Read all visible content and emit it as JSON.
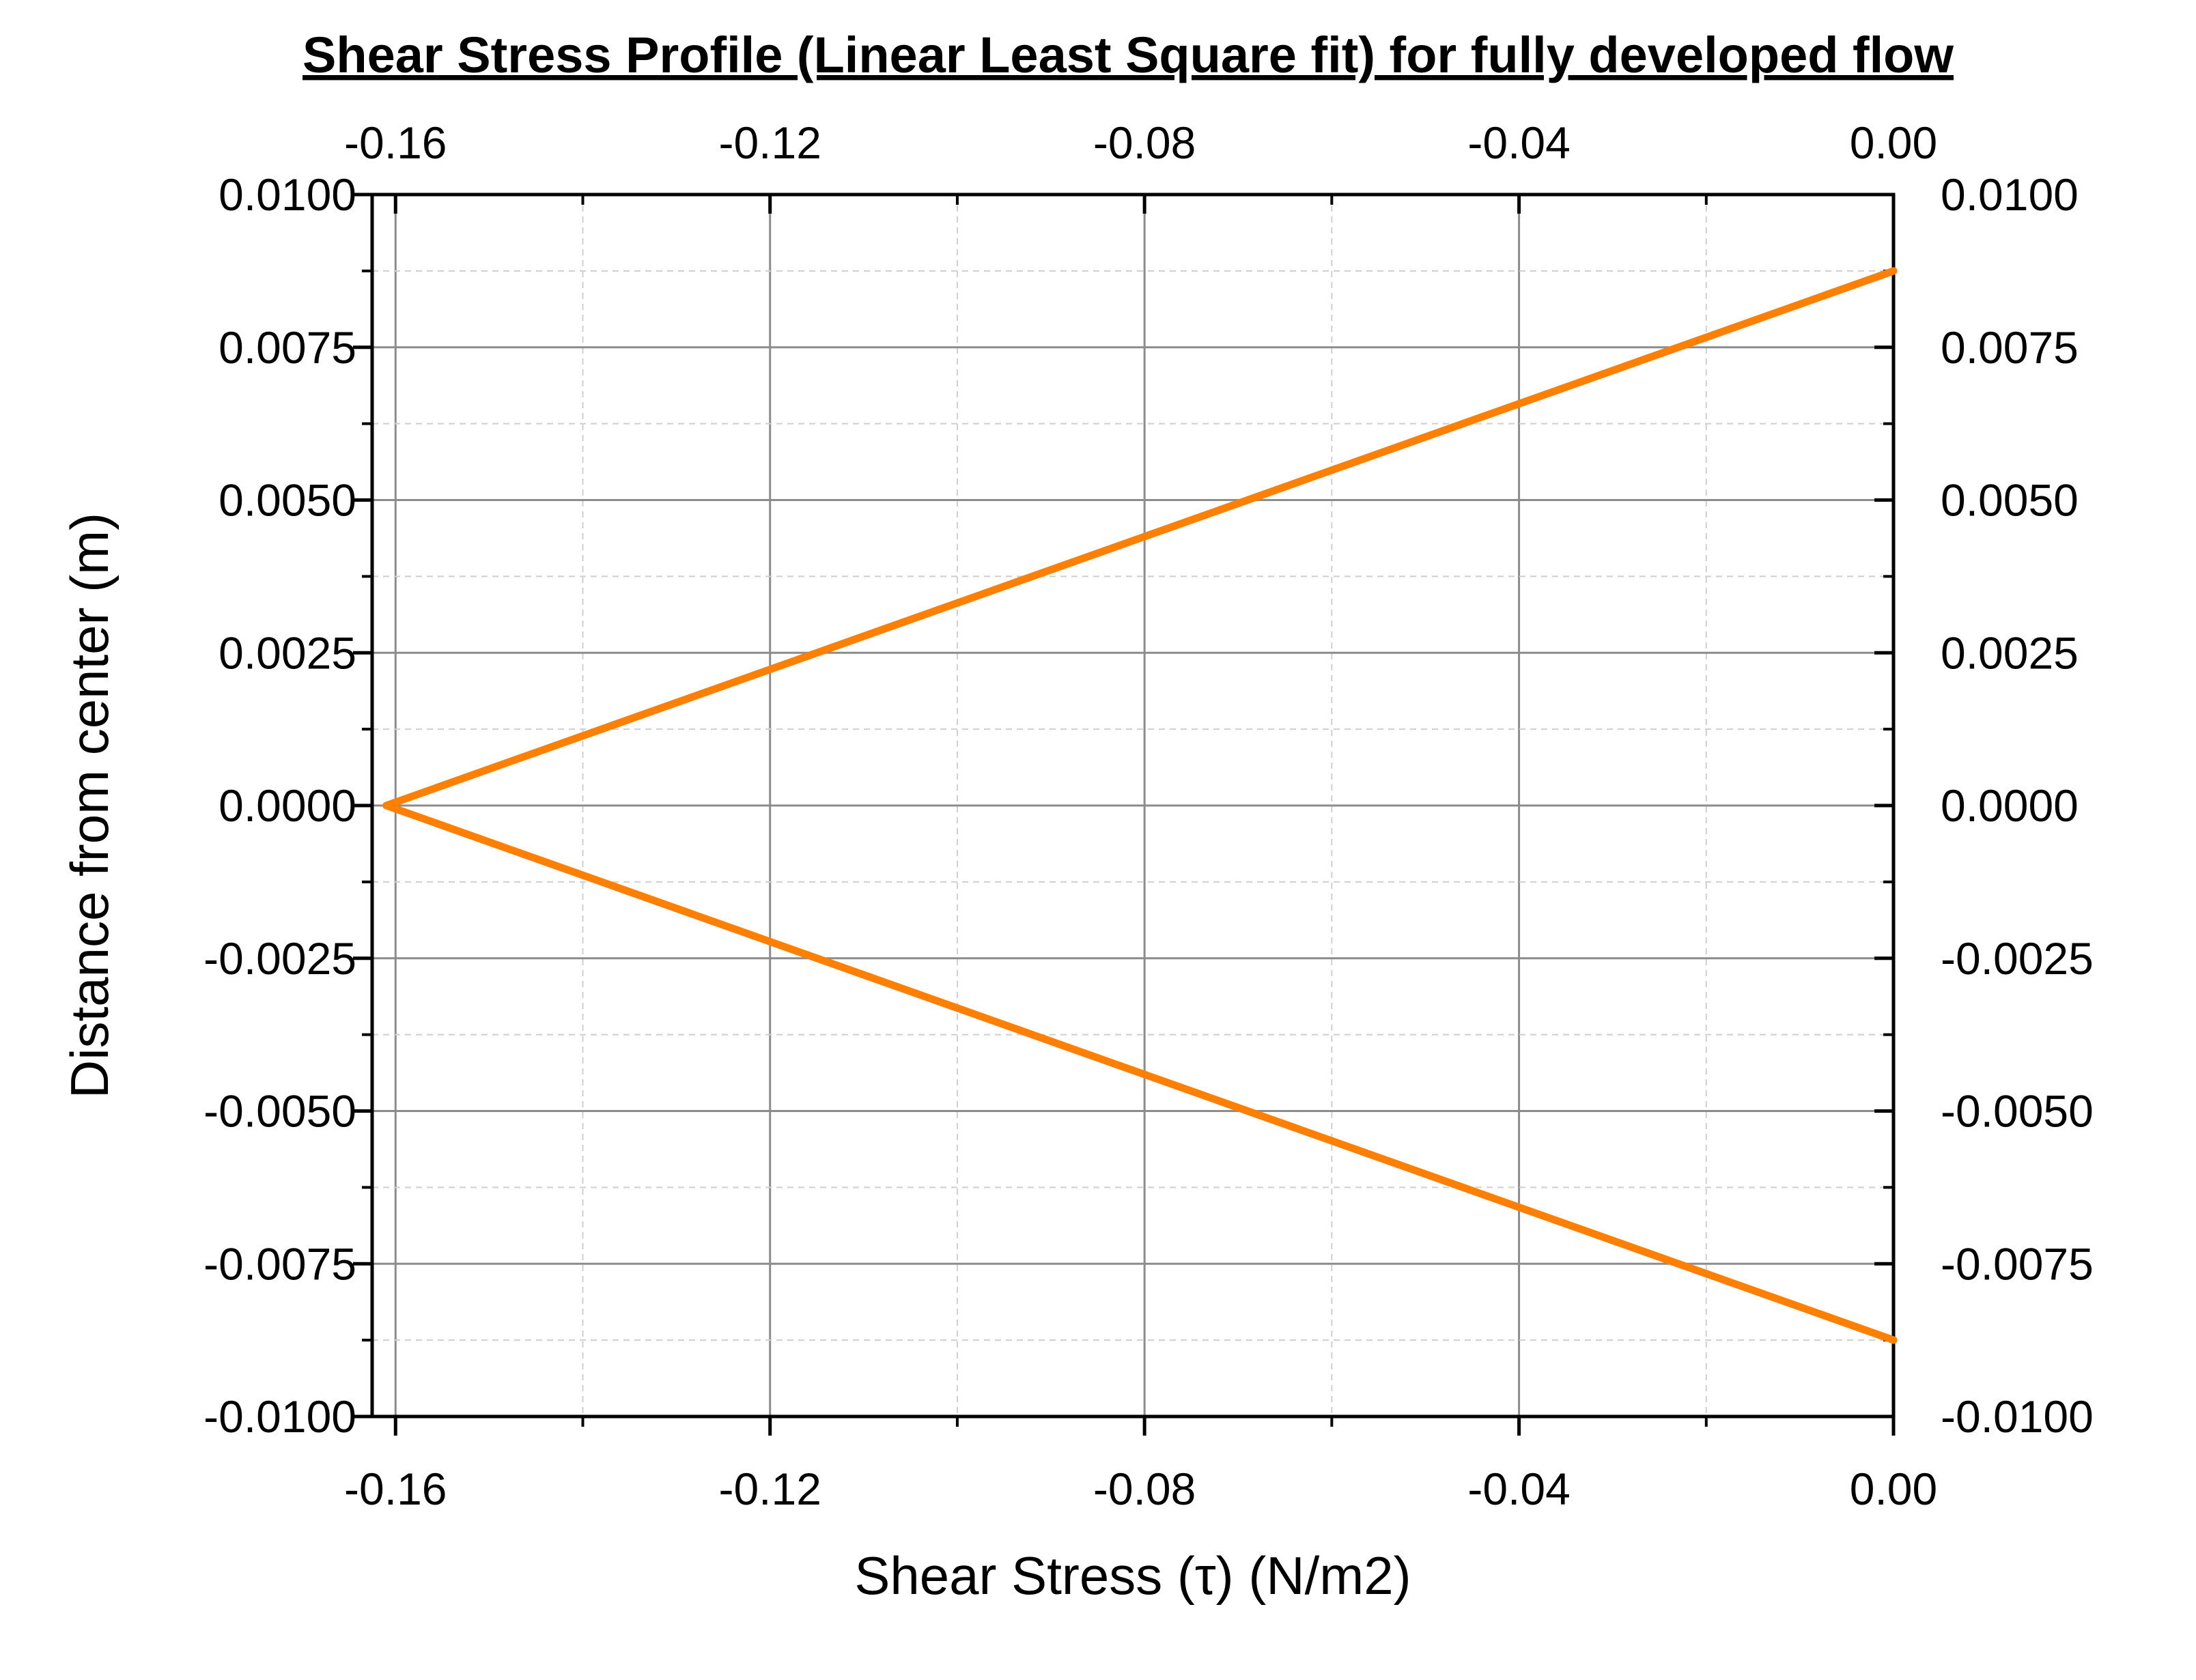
{
  "chart_data": {
    "type": "line",
    "title": "Shear Stress Profile (Linear Least Square fit) for fully developed flow",
    "xlabel": "Shear Stress (τ) (N/m2)",
    "ylabel": "Distance from center (m)",
    "xlim": [
      -0.1625,
      0.0
    ],
    "ylim": [
      -0.01,
      0.01
    ],
    "x_ticks": [
      -0.16,
      -0.12,
      -0.08,
      -0.04,
      0.0
    ],
    "x_tick_labels": [
      "-0.16",
      "-0.12",
      "-0.08",
      "-0.04",
      "0.00"
    ],
    "x_minor_ticks": [
      -0.14,
      -0.1,
      -0.06,
      -0.02
    ],
    "y_ticks": [
      -0.01,
      -0.0075,
      -0.005,
      -0.0025,
      0.0,
      0.0025,
      0.005,
      0.0075,
      0.01
    ],
    "y_tick_labels": [
      "-0.0100",
      "-0.0075",
      "-0.0050",
      "-0.0025",
      "0.0000",
      "0.0025",
      "0.0050",
      "0.0075",
      "0.0100"
    ],
    "y_minor_ticks": [
      -0.00875,
      -0.00625,
      -0.00375,
      -0.00125,
      0.00125,
      0.00375,
      0.00625,
      0.00875
    ],
    "grid": true,
    "mirror_axes": true,
    "series": [
      {
        "color": "#ff8000",
        "x": [
          0.0,
          -0.161,
          0.0
        ],
        "y": [
          0.00875,
          0.0,
          -0.00875
        ]
      }
    ]
  }
}
